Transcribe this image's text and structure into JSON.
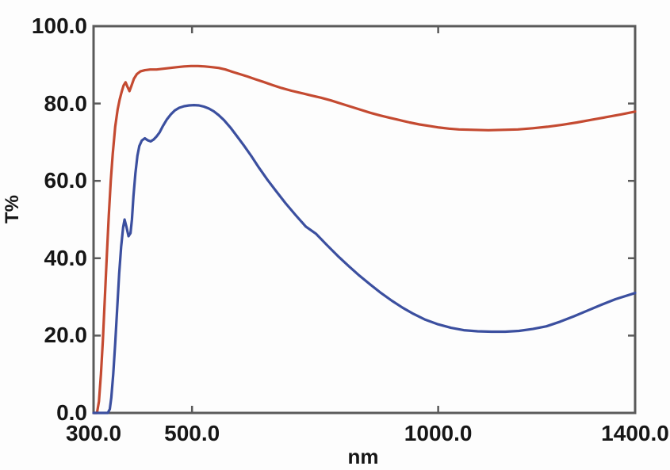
{
  "chart_data": {
    "type": "line",
    "title": "",
    "xlabel": "nm",
    "ylabel": "T%",
    "xlim": [
      300,
      1400
    ],
    "ylim": [
      0,
      100
    ],
    "grid": false,
    "legend": null,
    "x_tick_labels": [
      {
        "v": 300,
        "t": "300.0"
      },
      {
        "v": 500,
        "t": "500.0"
      },
      {
        "v": 1000,
        "t": "1000.0"
      },
      {
        "v": 1400,
        "t": "1400.0"
      }
    ],
    "y_tick_labels": [
      {
        "v": 0,
        "t": "0.0"
      },
      {
        "v": 20,
        "t": "20.0"
      },
      {
        "v": 40,
        "t": "40.0"
      },
      {
        "v": 60,
        "t": "60.0"
      },
      {
        "v": 80,
        "t": "80.0"
      },
      {
        "v": 100,
        "t": "100.0"
      }
    ],
    "x_tick_marks": [
      500,
      1000
    ],
    "y_tick_marks": [
      20,
      40,
      60,
      80
    ],
    "colors": {
      "frame": "#5a5a5a",
      "text": "#161616",
      "background": "#fdfdfd",
      "series_red": "#c44a31",
      "series_blue": "#3b4f9f"
    },
    "series": [
      {
        "name": "upper-curve-red",
        "color": "#c44a31",
        "points": [
          [
            300,
            0
          ],
          [
            307,
            0
          ],
          [
            311,
            3
          ],
          [
            315,
            10
          ],
          [
            319,
            19
          ],
          [
            323,
            30
          ],
          [
            327,
            41
          ],
          [
            331,
            51
          ],
          [
            335,
            60
          ],
          [
            339,
            67
          ],
          [
            344,
            74
          ],
          [
            349,
            78.5
          ],
          [
            353,
            81
          ],
          [
            357,
            83
          ],
          [
            361,
            84.7
          ],
          [
            365,
            85.5
          ],
          [
            369,
            84.3
          ],
          [
            373,
            83.2
          ],
          [
            377,
            84.6
          ],
          [
            382,
            86.4
          ],
          [
            388,
            87.6
          ],
          [
            395,
            88.3
          ],
          [
            404,
            88.6
          ],
          [
            415,
            88.8
          ],
          [
            428,
            88.8
          ],
          [
            442,
            89.0
          ],
          [
            456,
            89.2
          ],
          [
            470,
            89.4
          ],
          [
            484,
            89.6
          ],
          [
            498,
            89.7
          ],
          [
            512,
            89.7
          ],
          [
            526,
            89.6
          ],
          [
            540,
            89.4
          ],
          [
            554,
            89.2
          ],
          [
            568,
            88.8
          ],
          [
            582,
            88.2
          ],
          [
            597,
            87.6
          ],
          [
            612,
            87.0
          ],
          [
            628,
            86.3
          ],
          [
            645,
            85.6
          ],
          [
            663,
            84.8
          ],
          [
            682,
            84.0
          ],
          [
            702,
            83.3
          ],
          [
            722,
            82.7
          ],
          [
            742,
            82.1
          ],
          [
            762,
            81.5
          ],
          [
            782,
            80.8
          ],
          [
            802,
            80.0
          ],
          [
            822,
            79.2
          ],
          [
            842,
            78.4
          ],
          [
            862,
            77.6
          ],
          [
            882,
            76.9
          ],
          [
            902,
            76.3
          ],
          [
            922,
            75.7
          ],
          [
            942,
            75.1
          ],
          [
            962,
            74.6
          ],
          [
            982,
            74.2
          ],
          [
            1002,
            73.8
          ],
          [
            1022,
            73.5
          ],
          [
            1042,
            73.3
          ],
          [
            1072,
            73.2
          ],
          [
            1102,
            73.1
          ],
          [
            1132,
            73.2
          ],
          [
            1162,
            73.3
          ],
          [
            1192,
            73.6
          ],
          [
            1222,
            74.0
          ],
          [
            1252,
            74.5
          ],
          [
            1282,
            75.1
          ],
          [
            1312,
            75.8
          ],
          [
            1342,
            76.5
          ],
          [
            1372,
            77.2
          ],
          [
            1400,
            77.9
          ]
        ]
      },
      {
        "name": "lower-curve-blue",
        "color": "#3b4f9f",
        "points": [
          [
            300,
            0
          ],
          [
            329,
            0
          ],
          [
            333,
            1
          ],
          [
            336,
            4
          ],
          [
            340,
            10
          ],
          [
            344,
            18
          ],
          [
            348,
            27
          ],
          [
            352,
            36
          ],
          [
            356,
            43
          ],
          [
            360,
            48
          ],
          [
            363,
            50
          ],
          [
            367,
            48
          ],
          [
            371,
            45.7
          ],
          [
            375,
            46.5
          ],
          [
            378,
            50
          ],
          [
            381,
            56
          ],
          [
            385,
            62
          ],
          [
            389,
            66.5
          ],
          [
            393,
            69
          ],
          [
            398,
            70.4
          ],
          [
            404,
            71
          ],
          [
            410,
            70.5
          ],
          [
            416,
            70.2
          ],
          [
            422,
            70.7
          ],
          [
            428,
            71.5
          ],
          [
            434,
            72.5
          ],
          [
            441,
            74.2
          ],
          [
            449,
            75.9
          ],
          [
            457,
            77.2
          ],
          [
            465,
            78.2
          ],
          [
            474,
            78.9
          ],
          [
            484,
            79.3
          ],
          [
            494,
            79.5
          ],
          [
            504,
            79.6
          ],
          [
            514,
            79.5
          ],
          [
            524,
            79.2
          ],
          [
            534,
            78.7
          ],
          [
            544,
            78.0
          ],
          [
            554,
            77.0
          ],
          [
            565,
            75.7
          ],
          [
            578,
            73.8
          ],
          [
            591,
            71.6
          ],
          [
            605,
            69.2
          ],
          [
            620,
            66.5
          ],
          [
            636,
            63.4
          ],
          [
            653,
            60.3
          ],
          [
            671,
            57.3
          ],
          [
            690,
            54.2
          ],
          [
            710,
            51.2
          ],
          [
            731,
            48.2
          ],
          [
            752,
            46.3
          ],
          [
            774,
            43.4
          ],
          [
            796,
            40.6
          ],
          [
            818,
            38.0
          ],
          [
            840,
            35.5
          ],
          [
            862,
            33.2
          ],
          [
            884,
            31.0
          ],
          [
            906,
            29.0
          ],
          [
            928,
            27.2
          ],
          [
            950,
            25.6
          ],
          [
            974,
            24.1
          ],
          [
            1000,
            22.9
          ],
          [
            1026,
            22.0
          ],
          [
            1052,
            21.4
          ],
          [
            1080,
            21.1
          ],
          [
            1108,
            21.0
          ],
          [
            1136,
            21.0
          ],
          [
            1164,
            21.2
          ],
          [
            1192,
            21.7
          ],
          [
            1220,
            22.4
          ],
          [
            1248,
            23.6
          ],
          [
            1276,
            25.0
          ],
          [
            1304,
            26.5
          ],
          [
            1332,
            28.0
          ],
          [
            1360,
            29.4
          ],
          [
            1400,
            31.0
          ]
        ]
      }
    ]
  }
}
